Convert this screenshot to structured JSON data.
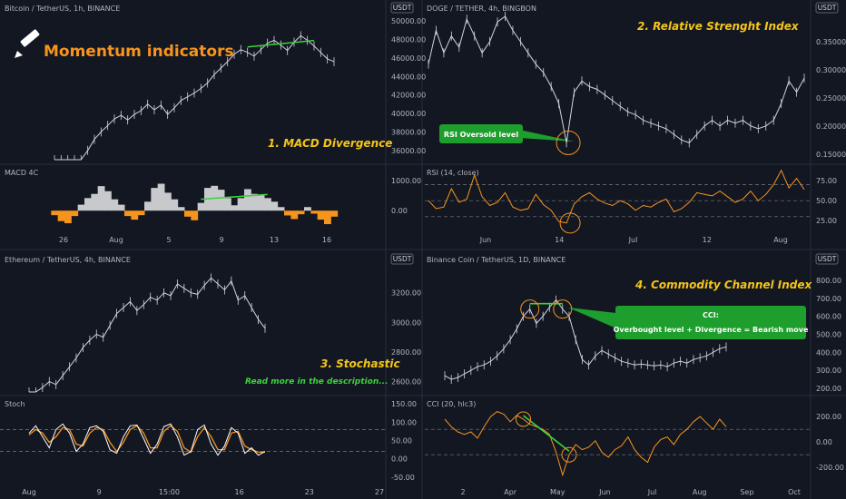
{
  "headline": "Momentum indicators",
  "icon": "pencil-icon",
  "colors": {
    "bg": "#131722",
    "grid": "#2a2e39",
    "price": "#d1d4dc",
    "orange": "#f7941d",
    "green": "#3bd33b",
    "yellow": "#f5c518",
    "macd_pos": "#c8c9cc",
    "macd_neg": "#f7941d"
  },
  "chart_data": [
    {
      "type": "line",
      "title": "Bitcoin / TetherUS, 1h, BINANCE",
      "annotation": "1. MACD Divergence",
      "price_axis": {
        "unit_badge": "USDT",
        "ticks": [
          "50000.00",
          "48000.00",
          "46000.00",
          "44000.00",
          "42000.00",
          "40000.00",
          "38000.00",
          "36000.00"
        ],
        "ylim": [
          35000,
          50500
        ]
      },
      "x_ticks": [
        "26",
        "Aug",
        "5",
        "9",
        "13",
        "16"
      ],
      "series": [
        {
          "values": [
            30200,
            31000,
            31800,
            33000,
            34500,
            36000,
            37200,
            38000,
            38700,
            39400,
            39800,
            39300,
            39900,
            40300,
            41000,
            40400,
            40900,
            39900,
            40600,
            41400,
            41800,
            42200,
            42700,
            43300,
            44200,
            44900,
            45600,
            46400,
            46900,
            46600,
            46200,
            46900,
            47600,
            47900,
            47400,
            46800,
            47700,
            48400,
            47900,
            47300,
            46600,
            45900,
            45600
          ]
        }
      ],
      "divergence": {
        "from": 29,
        "to": 39
      },
      "indicator": {
        "name": "MACD 4C",
        "ticks": [
          "1000.00",
          "0.00"
        ],
        "ylim": [
          -600,
          1400
        ],
        "values": [
          -150,
          -350,
          -420,
          -180,
          200,
          420,
          560,
          820,
          650,
          380,
          200,
          -180,
          -300,
          -150,
          300,
          760,
          900,
          600,
          380,
          120,
          -200,
          -320,
          260,
          760,
          830,
          700,
          420,
          180,
          420,
          720,
          560,
          520,
          420,
          300,
          120,
          -160,
          -280,
          -120,
          120,
          -100,
          -300,
          -450,
          -200
        ]
      },
      "indicator_divergence": {
        "from": 22,
        "to": 32
      }
    },
    {
      "type": "line",
      "title": "DOGE / TETHER, 4h, BINGBON",
      "annotation": "2. Relative Strenght Index",
      "callout": "RSI Oversold level",
      "price_axis": {
        "unit_badge": "USDT",
        "ticks": [
          "0.3500000",
          "0.3000000",
          "0.2500000",
          "0.2000000",
          "0.1500000"
        ],
        "ylim": [
          0.14,
          0.395
        ]
      },
      "x_ticks": [
        "Jun",
        "14",
        "Jul",
        "12",
        "Aug"
      ],
      "series": [
        {
          "values": [
            0.31,
            0.37,
            0.33,
            0.36,
            0.34,
            0.39,
            0.36,
            0.33,
            0.35,
            0.385,
            0.4,
            0.37,
            0.35,
            0.33,
            0.31,
            0.295,
            0.27,
            0.24,
            0.17,
            0.26,
            0.28,
            0.27,
            0.265,
            0.255,
            0.245,
            0.235,
            0.225,
            0.22,
            0.21,
            0.205,
            0.2,
            0.195,
            0.185,
            0.175,
            0.17,
            0.185,
            0.2,
            0.21,
            0.2,
            0.21,
            0.205,
            0.21,
            0.2,
            0.195,
            0.2,
            0.21,
            0.24,
            0.28,
            0.26,
            0.285
          ]
        }
      ],
      "oversold_index": 18,
      "indicator": {
        "name": "RSI (14, close)",
        "ticks": [
          "75.00",
          "50.00",
          "25.00"
        ],
        "ylim": [
          15,
          90
        ],
        "levels": [
          70,
          50,
          30
        ],
        "values": [
          50,
          40,
          42,
          65,
          48,
          52,
          82,
          55,
          44,
          48,
          60,
          42,
          38,
          40,
          58,
          45,
          38,
          24,
          22,
          46,
          55,
          60,
          52,
          47,
          44,
          50,
          46,
          38,
          44,
          42,
          48,
          52,
          36,
          40,
          48,
          60,
          58,
          56,
          62,
          55,
          48,
          52,
          62,
          50,
          58,
          70,
          88,
          66,
          78,
          64
        ]
      }
    },
    {
      "type": "line",
      "title": "Ethereum / TetherUS, 4h, BINANCE",
      "annotation": "3. Stochastic",
      "sub_annotation": "Read more in the description...",
      "price_axis": {
        "unit_badge": "USDT",
        "ticks": [
          "3200.00",
          "3000.00",
          "2800.00",
          "2600.00"
        ],
        "ylim": [
          2530,
          3370
        ]
      },
      "x_ticks": [
        "Aug",
        "9",
        "15:00",
        "16",
        "23",
        "27"
      ],
      "series": [
        {
          "values": [
            2480,
            2520,
            2560,
            2600,
            2580,
            2640,
            2700,
            2760,
            2830,
            2880,
            2920,
            2900,
            2980,
            3060,
            3100,
            3140,
            3080,
            3120,
            3170,
            3150,
            3200,
            3180,
            3260,
            3230,
            3200,
            3190,
            3250,
            3300,
            3260,
            3220,
            3280,
            3150,
            3180,
            3100,
            3020,
            2960
          ]
        }
      ],
      "indicator": {
        "name": "Stoch",
        "ticks": [
          "150.00",
          "100.00",
          "50.00",
          "0.00",
          "-50.00"
        ],
        "ylim": [
          -65,
          160
        ],
        "levels": [
          80,
          20
        ],
        "k": [
          70,
          90,
          60,
          30,
          80,
          95,
          70,
          20,
          40,
          85,
          90,
          75,
          25,
          15,
          60,
          90,
          92,
          55,
          15,
          40,
          88,
          95,
          60,
          10,
          20,
          80,
          92,
          40,
          10,
          35,
          85,
          70,
          15,
          30,
          10,
          20
        ],
        "d": [
          65,
          80,
          70,
          45,
          60,
          85,
          80,
          40,
          35,
          70,
          85,
          80,
          45,
          20,
          45,
          80,
          90,
          70,
          30,
          30,
          75,
          90,
          75,
          30,
          18,
          60,
          85,
          60,
          25,
          25,
          70,
          75,
          35,
          25,
          18,
          18
        ]
      }
    },
    {
      "type": "line",
      "title": "Binance Coin / TetherUS, 1D, BINANCE",
      "annotation": "4. Commodity Channel Index",
      "callout_title": "CCI:",
      "callout": "Overbought level + Divergence = Bearish move",
      "price_axis": {
        "unit_badge": "USDT",
        "ticks": [
          "800.00",
          "700.00",
          "600.00",
          "500.00",
          "400.00",
          "300.00",
          "200.00"
        ],
        "ylim": [
          180,
          870
        ]
      },
      "x_ticks": [
        "2",
        "Apr",
        "May",
        "Jun",
        "Jul",
        "Aug",
        "Sep",
        "Oct"
      ],
      "series": [
        {
          "values": [
            270,
            250,
            260,
            280,
            300,
            320,
            330,
            350,
            380,
            420,
            470,
            530,
            600,
            640,
            560,
            600,
            650,
            690,
            640,
            600,
            470,
            360,
            330,
            380,
            410,
            390,
            370,
            350,
            340,
            330,
            335,
            330,
            325,
            330,
            320,
            340,
            350,
            340,
            360,
            370,
            380,
            400,
            420,
            430
          ]
        }
      ],
      "divergence": {
        "from": 13,
        "to": 18
      },
      "indicator": {
        "name": "CCI (20, hlc3)",
        "ticks": [
          "200.00",
          "0.00",
          "-200.00"
        ],
        "ylim": [
          -320,
          330
        ],
        "levels": [
          100,
          -100
        ],
        "values": [
          180,
          120,
          80,
          60,
          80,
          30,
          120,
          200,
          240,
          220,
          160,
          210,
          180,
          140,
          120,
          100,
          60,
          -80,
          -260,
          -100,
          -20,
          -60,
          -40,
          10,
          -80,
          -120,
          -60,
          -30,
          40,
          -60,
          -120,
          -160,
          -40,
          20,
          40,
          -20,
          60,
          100,
          160,
          200,
          150,
          100,
          180,
          120
        ]
      },
      "indicator_divergence": {
        "from": 12,
        "to": 19
      }
    }
  ]
}
